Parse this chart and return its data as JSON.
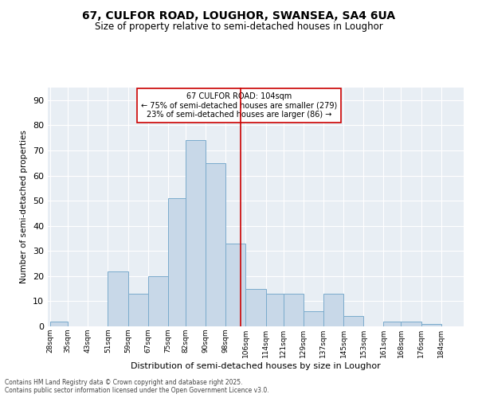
{
  "title_line1": "67, CULFOR ROAD, LOUGHOR, SWANSEA, SA4 6UA",
  "title_line2": "Size of property relative to semi-detached houses in Loughor",
  "xlabel": "Distribution of semi-detached houses by size in Loughor",
  "ylabel": "Number of semi-detached properties",
  "annotation_title": "67 CULFOR ROAD: 104sqm",
  "annotation_line2": "← 75% of semi-detached houses are smaller (279)",
  "annotation_line3": "23% of semi-detached houses are larger (86) →",
  "footer_line1": "Contains HM Land Registry data © Crown copyright and database right 2025.",
  "footer_line2": "Contains public sector information licensed under the Open Government Licence v3.0.",
  "bins": [
    28,
    35,
    43,
    51,
    59,
    67,
    75,
    82,
    90,
    98,
    106,
    114,
    121,
    129,
    137,
    145,
    153,
    161,
    168,
    176,
    184
  ],
  "bar_heights": [
    2,
    0,
    0,
    22,
    13,
    20,
    51,
    74,
    65,
    33,
    15,
    13,
    13,
    6,
    13,
    4,
    0,
    2,
    2,
    1
  ],
  "bar_color": "#c8d8e8",
  "bar_edge_color": "#7aaBcc",
  "vline_x": 104,
  "vline_color": "#cc0000",
  "annotation_box_color": "#cc0000",
  "background_color": "#e8eef4",
  "ylim": [
    0,
    95
  ],
  "yticks": [
    0,
    10,
    20,
    30,
    40,
    50,
    60,
    70,
    80,
    90
  ],
  "bin_labels": [
    "28sqm",
    "35sqm",
    "43sqm",
    "51sqm",
    "59sqm",
    "67sqm",
    "75sqm",
    "82sqm",
    "90sqm",
    "98sqm",
    "106sqm",
    "114sqm",
    "121sqm",
    "129sqm",
    "137sqm",
    "145sqm",
    "153sqm",
    "161sqm",
    "168sqm",
    "176sqm",
    "184sqm"
  ],
  "title_fontsize": 10,
  "subtitle_fontsize": 8.5,
  "ylabel_fontsize": 7.5,
  "xlabel_fontsize": 8,
  "ytick_fontsize": 8,
  "xtick_fontsize": 6.5,
  "annotation_fontsize": 7,
  "footer_fontsize": 5.5
}
